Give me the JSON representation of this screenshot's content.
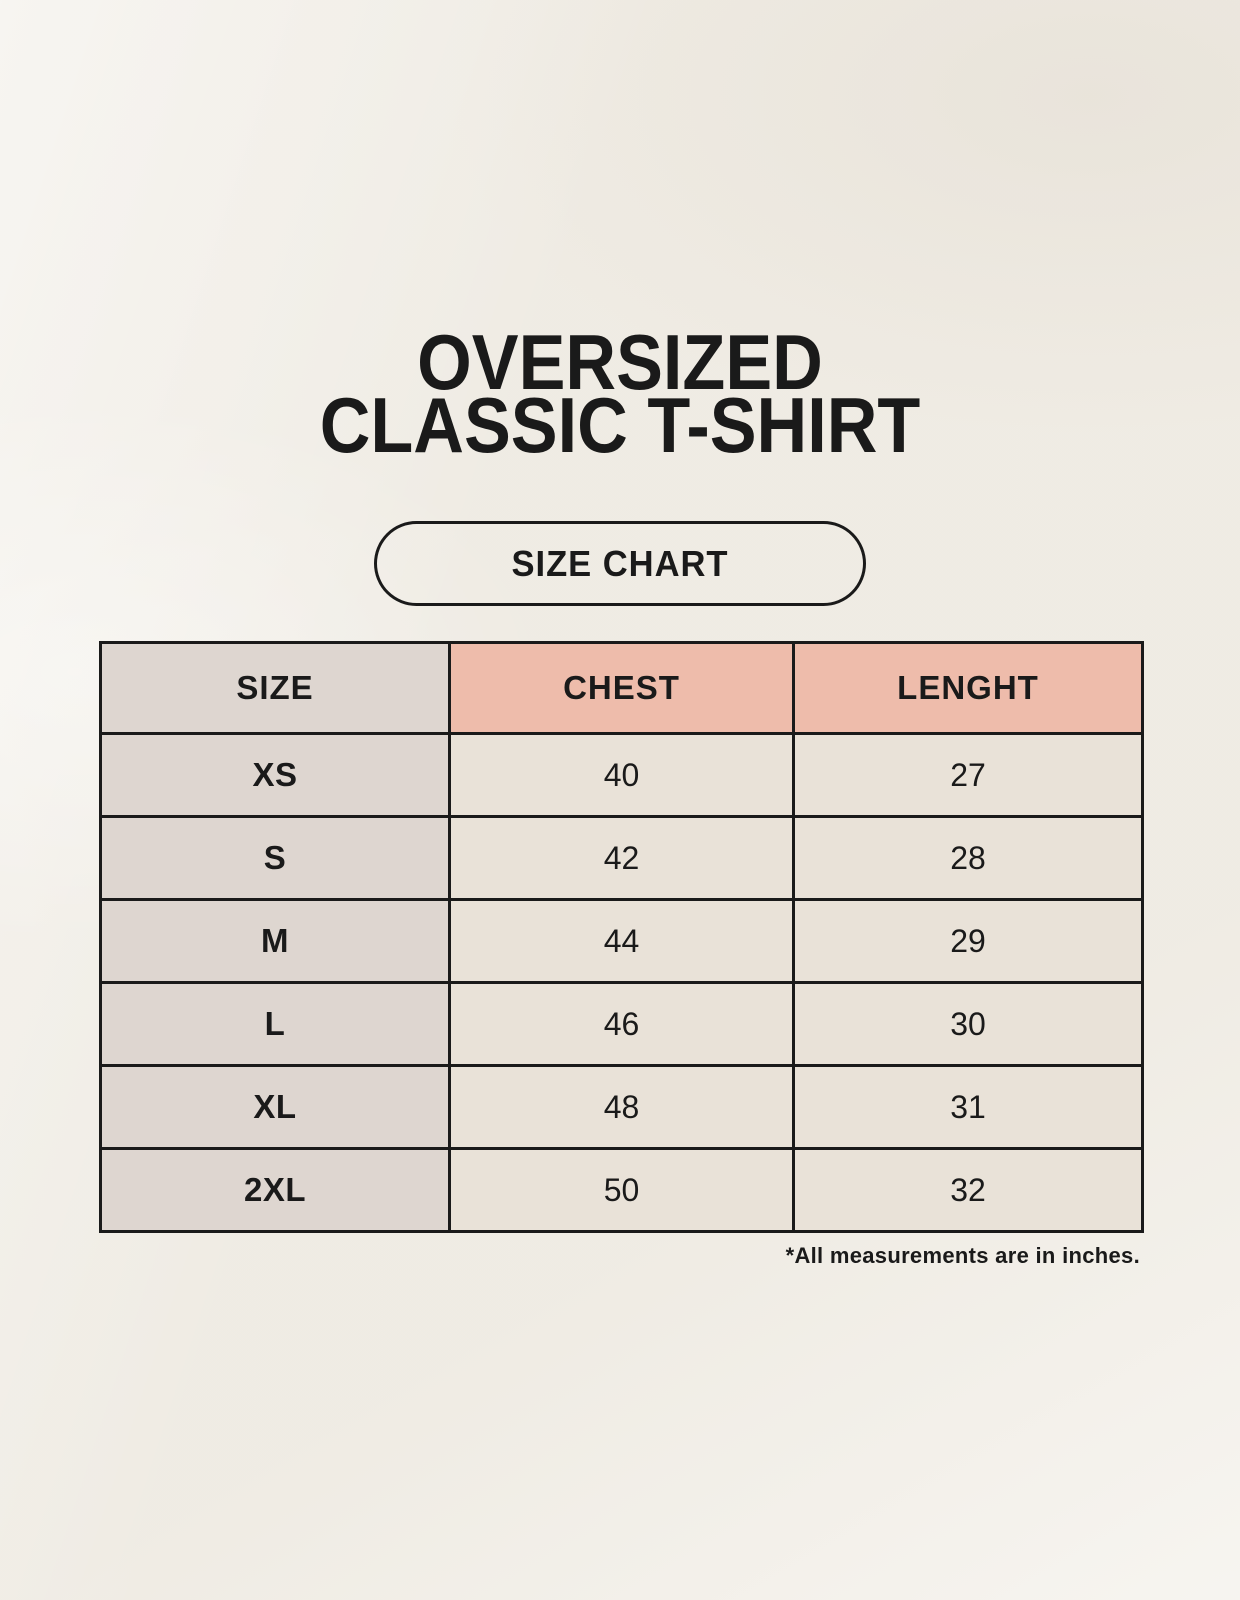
{
  "page": {
    "title_line1": "OVERSIZED",
    "title_line2": "CLASSIC T-SHIRT",
    "size_chart_badge": "SIZE CHART",
    "footnote": "*All measurements are in inches."
  },
  "colors": {
    "background": "#f2efe8",
    "header_pink": "#eebcab",
    "size_column_gray": "#ded6d0",
    "cell_cream": "#e9e2d8",
    "border_black": "#1a1a1a",
    "text_black": "#1a1a1a"
  },
  "chart_data": {
    "type": "table",
    "title": "OVERSIZED CLASSIC T-SHIRT",
    "subtitle": "SIZE CHART",
    "columns": [
      "SIZE",
      "CHEST",
      "LENGHT"
    ],
    "rows": [
      {
        "size": "XS",
        "chest": "40",
        "lenght": "27"
      },
      {
        "size": "S",
        "chest": "42",
        "lenght": "28"
      },
      {
        "size": "M",
        "chest": "44",
        "lenght": "29"
      },
      {
        "size": "L",
        "chest": "46",
        "lenght": "30"
      },
      {
        "size": "XL",
        "chest": "48",
        "lenght": "31"
      },
      {
        "size": "2XL",
        "chest": "50",
        "lenght": "32"
      }
    ],
    "units": "inches",
    "note": "*All measurements are in inches."
  }
}
